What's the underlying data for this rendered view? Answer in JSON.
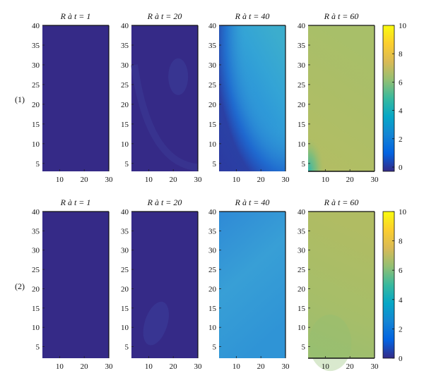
{
  "chart_data": {
    "type": "heatmap",
    "colormap": "parula",
    "rows": [
      {
        "label": "(1)",
        "panels": [
          {
            "title": "R à t = 1",
            "xlim": [
              3,
              30
            ],
            "ylim": [
              3,
              40
            ],
            "xticks": [
              "10",
              "20",
              "30"
            ],
            "yticks": [
              "5",
              "10",
              "15",
              "20",
              "25",
              "30",
              "35",
              "40"
            ],
            "description_value_range": [
              0,
              0.2
            ]
          },
          {
            "title": "R à t = 20",
            "xlim": [
              3,
              30
            ],
            "ylim": [
              3,
              40
            ],
            "xticks": [
              "10",
              "20",
              "30"
            ],
            "yticks": [
              "5",
              "10",
              "15",
              "20",
              "25",
              "30",
              "35",
              "40"
            ],
            "description_value_range": [
              0,
              0.5
            ]
          },
          {
            "title": "R à t = 40",
            "xlim": [
              3,
              30
            ],
            "ylim": [
              3,
              40
            ],
            "xticks": [
              "10",
              "20",
              "30"
            ],
            "yticks": [
              "5",
              "10",
              "15",
              "20",
              "25",
              "30",
              "35",
              "40"
            ],
            "description_value_range": [
              0.5,
              4
            ]
          },
          {
            "title": "R à t = 60",
            "xlim": [
              3,
              30
            ],
            "ylim": [
              3,
              40
            ],
            "xticks": [
              "10",
              "20",
              "30"
            ],
            "yticks": [
              "5",
              "10",
              "15",
              "20",
              "25",
              "30",
              "35",
              "40"
            ],
            "description_value_range": [
              4,
              6.5
            ]
          }
        ],
        "colorbar": {
          "ticks": [
            "0",
            "2",
            "4",
            "6",
            "8",
            "10"
          ],
          "range": [
            -0.3,
            10
          ]
        }
      },
      {
        "label": "(2)",
        "panels": [
          {
            "title": "R à t = 1",
            "xlim": [
              3,
              30
            ],
            "ylim": [
              2,
              40
            ],
            "xticks": [
              "10",
              "20",
              "30"
            ],
            "yticks": [
              "5",
              "10",
              "15",
              "20",
              "25",
              "30",
              "35",
              "40"
            ],
            "description_value_range": [
              0,
              0.2
            ]
          },
          {
            "title": "R à t = 20",
            "xlim": [
              3,
              30
            ],
            "ylim": [
              2,
              40
            ],
            "xticks": [
              "10",
              "20",
              "30"
            ],
            "yticks": [
              "5",
              "10",
              "15",
              "20",
              "25",
              "30",
              "35",
              "40"
            ],
            "description_value_range": [
              0,
              0.5
            ]
          },
          {
            "title": "R à t = 40",
            "xlim": [
              3,
              30
            ],
            "ylim": [
              2,
              40
            ],
            "xticks": [
              "10",
              "20",
              "30"
            ],
            "yticks": [
              "5",
              "10",
              "15",
              "20",
              "25",
              "30",
              "35",
              "40"
            ],
            "description_value_range": [
              3,
              3.5
            ]
          },
          {
            "title": "R à t = 60",
            "xlim": [
              3,
              30
            ],
            "ylim": [
              2,
              40
            ],
            "xticks": [
              "10",
              "20",
              "30"
            ],
            "yticks": [
              "5",
              "10",
              "15",
              "20",
              "25",
              "30",
              "35",
              "40"
            ],
            "description_value_range": [
              5.5,
              6.5
            ]
          }
        ],
        "colorbar": {
          "ticks": [
            "0",
            "2",
            "4",
            "6",
            "8",
            "10"
          ],
          "range": [
            0,
            10
          ]
        }
      }
    ]
  }
}
